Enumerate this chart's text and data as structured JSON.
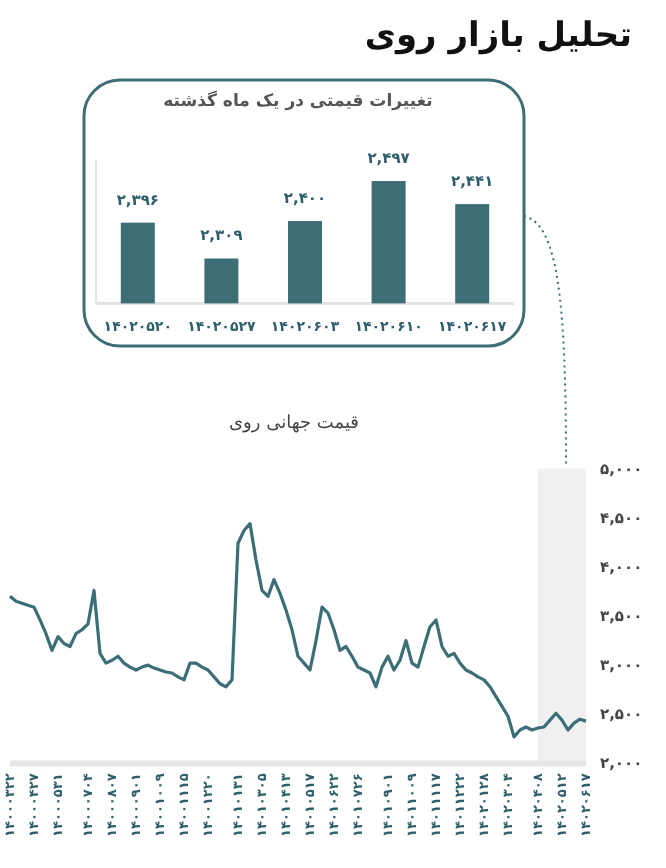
{
  "chart_data": [
    {
      "type": "bar",
      "title": "تحلیل بازار روی",
      "subtitle": "تغییرات قیمتی در یک ماه گذشته",
      "categories": [
        "۱۴۰۲۰۵۲۰",
        "۱۴۰۲۰۵۲۷",
        "۱۴۰۲۰۶۰۳",
        "۱۴۰۲۰۶۱۰",
        "۱۴۰۲۰۶۱۷"
      ],
      "values": [
        2396,
        2309,
        2400,
        2497,
        2441
      ],
      "value_labels": [
        "۲,۳۹۶",
        "۲,۳۰۹",
        "۲,۴۰۰",
        "۲,۴۹۷",
        "۲,۴۴۱"
      ],
      "color": "#3d6e76",
      "ylim": [
        2200,
        2550
      ],
      "tick_labels": "x"
    },
    {
      "type": "line",
      "title": "قیمت جهانی روی",
      "categories": [
        "۱۴۰۰۰۳۲۲",
        null,
        null,
        null,
        "۱۴۰۰۰۴۲۷",
        null,
        null,
        null,
        "۱۴۰۰۰۵۳۱",
        null,
        null,
        null,
        null,
        "۱۴۰۰۰۷۰۴",
        null,
        null,
        null,
        "۱۴۰۰۰۸۰۷",
        null,
        null,
        null,
        "۱۴۰۰۰۹۰۱",
        null,
        null,
        null,
        "۱۴۰۰۱۰۰۹",
        null,
        null,
        null,
        "۱۴۰۰۱۱۱۵",
        null,
        null,
        null,
        "۱۴۰۰۱۲۲۰",
        null,
        null,
        null,
        null,
        "۱۴۰۱۰۱۳۱",
        null,
        null,
        null,
        "۱۴۰۱۰۳۰۵",
        null,
        null,
        null,
        "۱۴۰۱۰۴۱۳",
        null,
        null,
        null,
        "۱۴۰۱۰۵۱۷",
        null,
        null,
        null,
        "۱۴۰۱۰۶۲۲",
        null,
        null,
        null,
        "۱۴۰۱۰۷۲۶",
        null,
        null,
        null,
        null,
        "۱۴۰۱۰۹۰۱",
        null,
        null,
        null,
        "۱۴۰۱۱۰۰۹",
        null,
        null,
        null,
        "۱۴۰۱۱۱۱۷",
        null,
        null,
        null,
        "۱۴۰۱۱۲۲۲",
        null,
        null,
        null,
        "۱۴۰۲۰۱۲۸",
        null,
        null,
        null,
        "۱۴۰۲۰۳۰۴",
        null,
        null,
        null,
        null,
        "۱۴۰۲۰۴۰۸",
        null,
        null,
        null,
        "۱۴۰۲۰۵۱۲",
        null,
        null,
        null,
        "۱۴۰۲۰۶۱۷"
      ],
      "values": [
        3700,
        3650,
        3630,
        3610,
        3590,
        3460,
        3320,
        3150,
        3290,
        3220,
        3190,
        3320,
        3360,
        3420,
        3760,
        3120,
        3020,
        3050,
        3090,
        3020,
        2980,
        2950,
        2980,
        3000,
        2970,
        2950,
        2930,
        2920,
        2880,
        2850,
        3020,
        3020,
        2980,
        2950,
        2880,
        2810,
        2780,
        2850,
        4240,
        4370,
        4440,
        4070,
        3760,
        3700,
        3870,
        3730,
        3560,
        3360,
        3090,
        3020,
        2950,
        3250,
        3590,
        3530,
        3360,
        3150,
        3190,
        3090,
        2980,
        2950,
        2920,
        2780,
        2980,
        3090,
        2950,
        3050,
        3250,
        3020,
        2980,
        3190,
        3390,
        3460,
        3190,
        3090,
        3120,
        3020,
        2950,
        2920,
        2880,
        2850,
        2780,
        2680,
        2580,
        2480,
        2270,
        2340,
        2370,
        2340,
        2360,
        2370,
        2440,
        2510,
        2440,
        2340,
        2410,
        2450,
        2430
      ],
      "color": "#3b6e77",
      "ylim": [
        2000,
        5000
      ],
      "yticks": [
        {
          "value": 2000,
          "label": "۲,۰۰۰"
        },
        {
          "value": 2500,
          "label": "۲,۵۰۰"
        },
        {
          "value": 3000,
          "label": "۳,۰۰۰"
        },
        {
          "value": 3500,
          "label": "۳,۵۰۰"
        },
        {
          "value": 4000,
          "label": "۴,۰۰۰"
        },
        {
          "value": 4500,
          "label": "۴,۵۰۰"
        },
        {
          "value": 5000,
          "label": "۵,۰۰۰"
        }
      ],
      "bands": [
        {
          "axis": "x",
          "from": "۱۴۰۲۰۴۰۸",
          "to": "۱۴۰۲۰۶۱۷",
          "color": "#f0f0f0"
        }
      ]
    }
  ]
}
